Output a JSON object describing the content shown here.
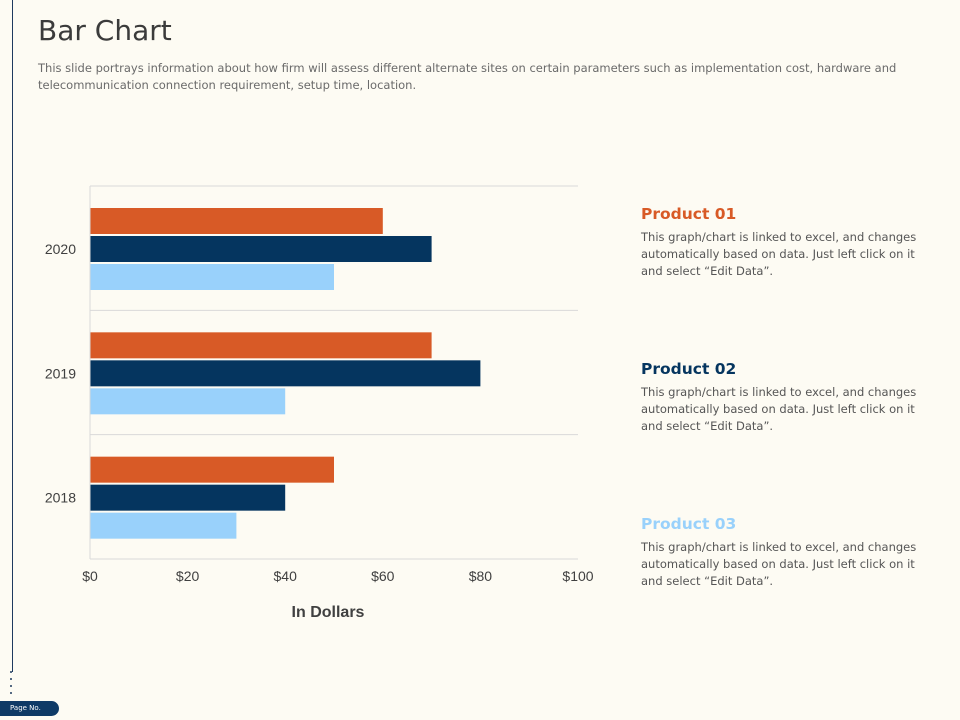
{
  "slide": {
    "title": "Bar Chart",
    "subtitle": "This slide portrays information about how firm will assess different alternate sites on certain parameters such as implementation cost, hardware and telecommunication connection requirement, setup time, location.",
    "page_label": "Page No."
  },
  "chart_data": {
    "type": "bar",
    "orientation": "horizontal",
    "categories": [
      "2020",
      "2019",
      "2018"
    ],
    "series": [
      {
        "name": "Product 01",
        "color": "#d85a26",
        "values": [
          60,
          70,
          50
        ]
      },
      {
        "name": "Product 02",
        "color": "#05355f",
        "values": [
          70,
          80,
          40
        ]
      },
      {
        "name": "Product 03",
        "color": "#99d1fb",
        "values": [
          50,
          40,
          30
        ]
      }
    ],
    "xlim": [
      0,
      100
    ],
    "xticks": [
      "$0",
      "$20",
      "$40",
      "$60",
      "$80",
      "$100"
    ],
    "xlabel": "In Dollars",
    "ylabel": "",
    "grid": true
  },
  "legend": [
    {
      "title": "Product 01",
      "color": "#d85a26",
      "text": "This graph/chart is linked to excel, and changes automatically based on data. Just left click on it and select “Edit Data”."
    },
    {
      "title": "Product 02",
      "color": "#05355f",
      "text": "This graph/chart is linked to excel, and changes automatically based on data. Just left click on it and select “Edit Data”."
    },
    {
      "title": "Product 03",
      "color": "#99d1fb",
      "text": "This graph/chart is linked to excel, and changes automatically based on data. Just left click on it and select “Edit Data”."
    }
  ]
}
